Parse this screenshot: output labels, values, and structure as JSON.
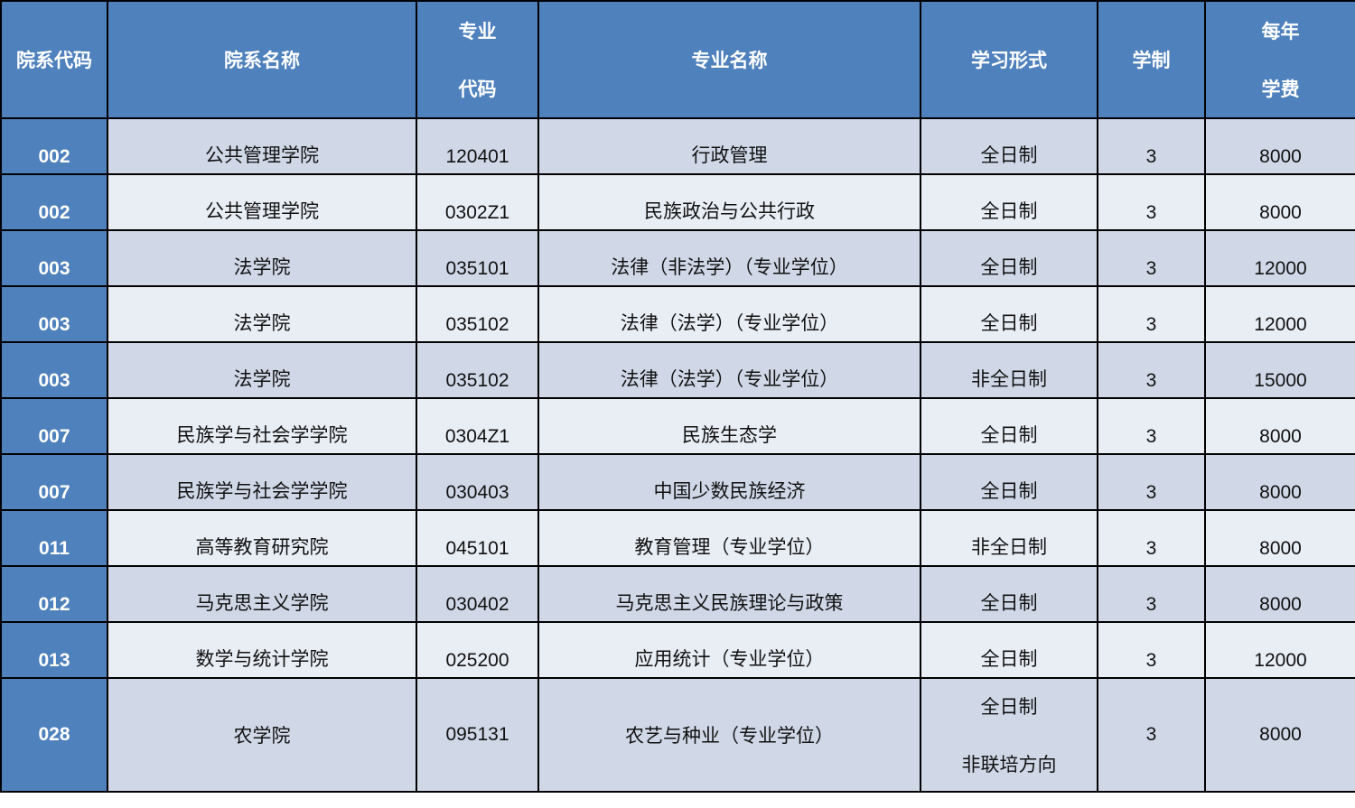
{
  "headers": {
    "dept_code": "院系代码",
    "dept_name": "院系名称",
    "major_code": [
      "专业",
      "代码"
    ],
    "major_name": "专业名称",
    "study_mode": "学习形式",
    "duration": "学制",
    "annual_fee": [
      "每年",
      "学费"
    ]
  },
  "colors": {
    "header": "#4F81BD",
    "row_odd": "#D0D8E8",
    "row_even": "#E9EDF4"
  },
  "rows": [
    {
      "dept_code": "002",
      "dept_name": "公共管理学院",
      "major_code": "120401",
      "major_name": "行政管理",
      "mode": "全日制",
      "duration": "3",
      "fee": "8000"
    },
    {
      "dept_code": "002",
      "dept_name": "公共管理学院",
      "major_code": "0302Z1",
      "major_name": "民族政治与公共行政",
      "mode": "全日制",
      "duration": "3",
      "fee": "8000"
    },
    {
      "dept_code": "003",
      "dept_name": "法学院",
      "major_code": "035101",
      "major_name": "法律（非法学）（专业学位）",
      "mode": "全日制",
      "duration": "3",
      "fee": "12000"
    },
    {
      "dept_code": "003",
      "dept_name": "法学院",
      "major_code": "035102",
      "major_name": "法律（法学）（专业学位）",
      "mode": "全日制",
      "duration": "3",
      "fee": "12000"
    },
    {
      "dept_code": "003",
      "dept_name": "法学院",
      "major_code": "035102",
      "major_name": "法律（法学）（专业学位）",
      "mode": "非全日制",
      "duration": "3",
      "fee": "15000"
    },
    {
      "dept_code": "007",
      "dept_name": "民族学与社会学学院",
      "major_code": "0304Z1",
      "major_name": "民族生态学",
      "mode": "全日制",
      "duration": "3",
      "fee": "8000"
    },
    {
      "dept_code": "007",
      "dept_name": "民族学与社会学学院",
      "major_code": "030403",
      "major_name": "中国少数民族经济",
      "mode": "全日制",
      "duration": "3",
      "fee": "8000"
    },
    {
      "dept_code": "011",
      "dept_name": "高等教育研究院",
      "major_code": "045101",
      "major_name": "教育管理（专业学位）",
      "mode": "非全日制",
      "duration": "3",
      "fee": "8000"
    },
    {
      "dept_code": "012",
      "dept_name": "马克思主义学院",
      "major_code": "030402",
      "major_name": "马克思主义民族理论与政策",
      "mode": "全日制",
      "duration": "3",
      "fee": "8000"
    },
    {
      "dept_code": "013",
      "dept_name": "数学与统计学院",
      "major_code": "025200",
      "major_name": "应用统计（专业学位）",
      "mode": "全日制",
      "duration": "3",
      "fee": "12000"
    }
  ],
  "last_row": {
    "dept_code": "028",
    "dept_name": "农学院",
    "major_code": "095131",
    "major_name": "农艺与种业（专业学位）",
    "mode": [
      "全日制",
      "非联培方向"
    ],
    "duration": "3",
    "fee": "8000"
  }
}
